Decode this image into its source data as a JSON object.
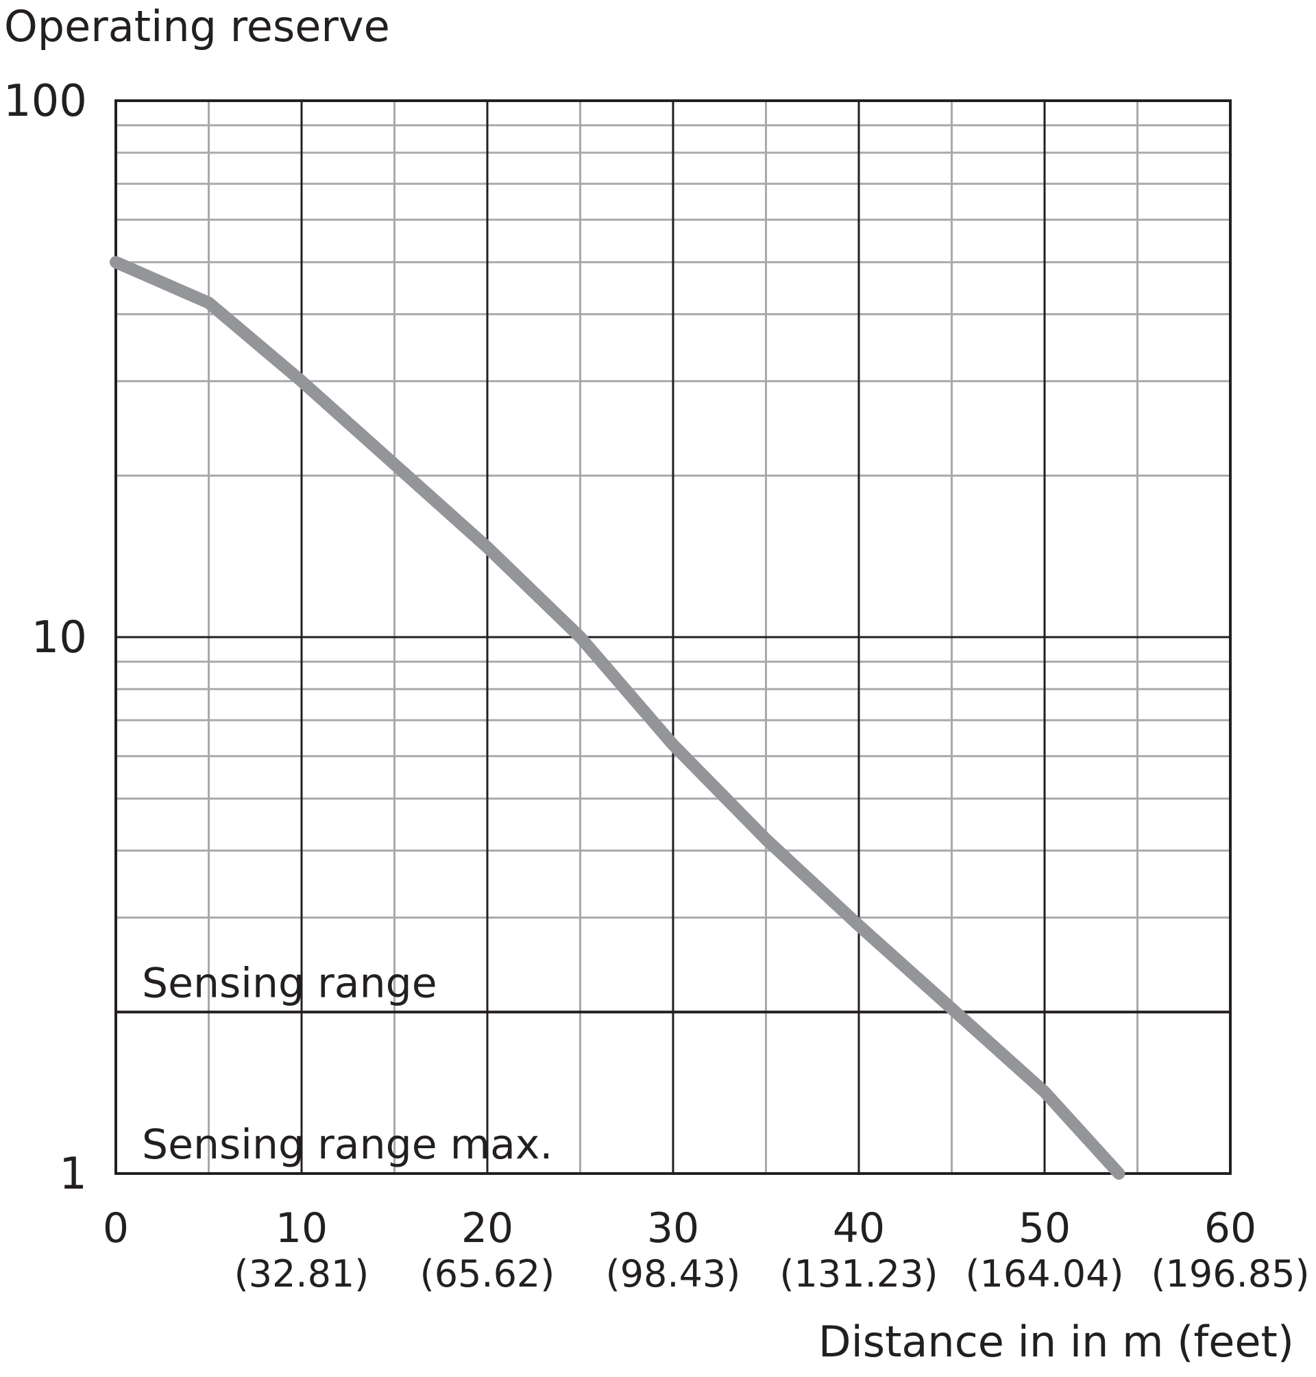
{
  "chart_data": {
    "type": "line",
    "title": "Operating reserve",
    "x_label": "Distance in in m (feet)",
    "x": [
      0,
      5,
      10,
      15,
      20,
      25,
      30,
      35,
      40,
      45,
      50,
      54
    ],
    "series": [
      {
        "color": "#939598",
        "values": [
          50,
          42,
          30,
          21,
          14.7,
          10,
          6.3,
          4.2,
          2.9,
          2.03,
          1.42,
          1
        ]
      }
    ],
    "xlim": [
      0,
      60
    ],
    "xticks": [
      0,
      10,
      20,
      30,
      40,
      50,
      60
    ],
    "xtick_feet_labels": [
      "(32.81)",
      "(65.62)",
      "(98.43)",
      "(131.23)",
      "(164.04)",
      "(196.85)"
    ],
    "xminor": [
      5,
      15,
      25,
      35,
      45,
      55
    ],
    "ylim": [
      1,
      100
    ],
    "yticks": [
      1,
      10,
      100
    ],
    "y_log": true,
    "yminor": [
      3,
      4,
      5,
      6,
      7,
      8,
      9,
      20,
      30,
      40,
      50,
      60,
      70,
      80,
      90
    ],
    "annotations": [
      {
        "text": "Sensing range",
        "value": 2
      },
      {
        "text": "Sensing range max.",
        "value": 1
      }
    ],
    "grid": true
  }
}
